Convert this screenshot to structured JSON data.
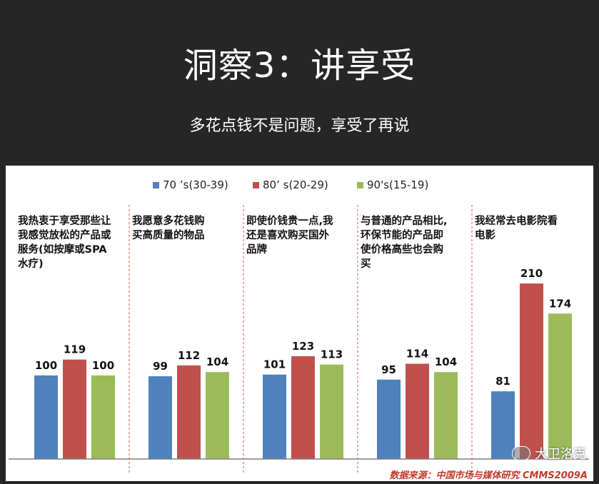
{
  "header": {
    "title": "洞察3：讲享受",
    "subtitle": "多花点钱不是问题，享受了再说"
  },
  "legend": [
    {
      "label": "70 ’s(30-39)",
      "color": "#4f81bd"
    },
    {
      "label": "80’ s(20-29)",
      "color": "#c0504d"
    },
    {
      "label": "90's(15-19)",
      "color": "#9bbb59"
    }
  ],
  "chart_data": {
    "type": "bar",
    "ylim": [
      0,
      240
    ],
    "categories": [
      [
        "我热衷于享受那些让",
        "我感觉放松的产品或",
        "服务(如按摩或SPA",
        "水疗)"
      ],
      [
        "我愿意多花钱购",
        "买高质量的物品"
      ],
      [
        "即使价钱贵一点,我",
        "还是喜欢购买国外",
        "品牌"
      ],
      [
        "与普通的产品相比,",
        "环保节能的产品即",
        "使价格高些也会购",
        "买"
      ],
      [
        "我经常去电影院看",
        "电影"
      ]
    ],
    "series": [
      {
        "name": "70 ’s(30-39)",
        "values": [
          100,
          99,
          101,
          95,
          81
        ]
      },
      {
        "name": "80’ s(20-29)",
        "values": [
          119,
          112,
          123,
          114,
          210
        ]
      },
      {
        "name": "90's(15-19)",
        "values": [
          100,
          104,
          113,
          104,
          174
        ]
      }
    ]
  },
  "source": "数据来源：中国市场与媒体研究 CMMS2009A",
  "watermark": "大卫洛克"
}
